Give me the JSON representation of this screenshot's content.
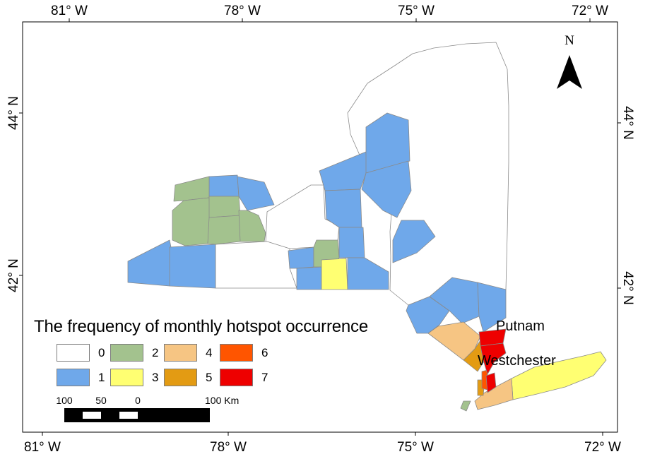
{
  "graticule": {
    "top": [
      "81° W",
      "78° W",
      "75° W",
      "72° W"
    ],
    "bottom": [
      "81° W",
      "78° W",
      "75° W",
      "72° W"
    ],
    "left": [
      "44° N",
      "42° N"
    ],
    "right": [
      "44° N",
      "42° N"
    ]
  },
  "legend": {
    "title": "The frequency of monthly hotspot occurrence",
    "items": [
      {
        "label": "0",
        "color": "#ffffff"
      },
      {
        "label": "1",
        "color": "#6fa8ea"
      },
      {
        "label": "2",
        "color": "#a3c28e"
      },
      {
        "label": "3",
        "color": "#ffff72"
      },
      {
        "label": "4",
        "color": "#f6c583"
      },
      {
        "label": "5",
        "color": "#e39b13"
      },
      {
        "label": "6",
        "color": "#ff5500"
      },
      {
        "label": "7",
        "color": "#ee0000"
      }
    ]
  },
  "labels": {
    "putnam": "Putnam",
    "westchester": "Westchester"
  },
  "north_arrow": {
    "label": "N",
    "icon": "north-arrow-icon"
  },
  "scale_bar": {
    "ticks": [
      "100",
      "50",
      "0",
      "100 Km"
    ]
  }
}
